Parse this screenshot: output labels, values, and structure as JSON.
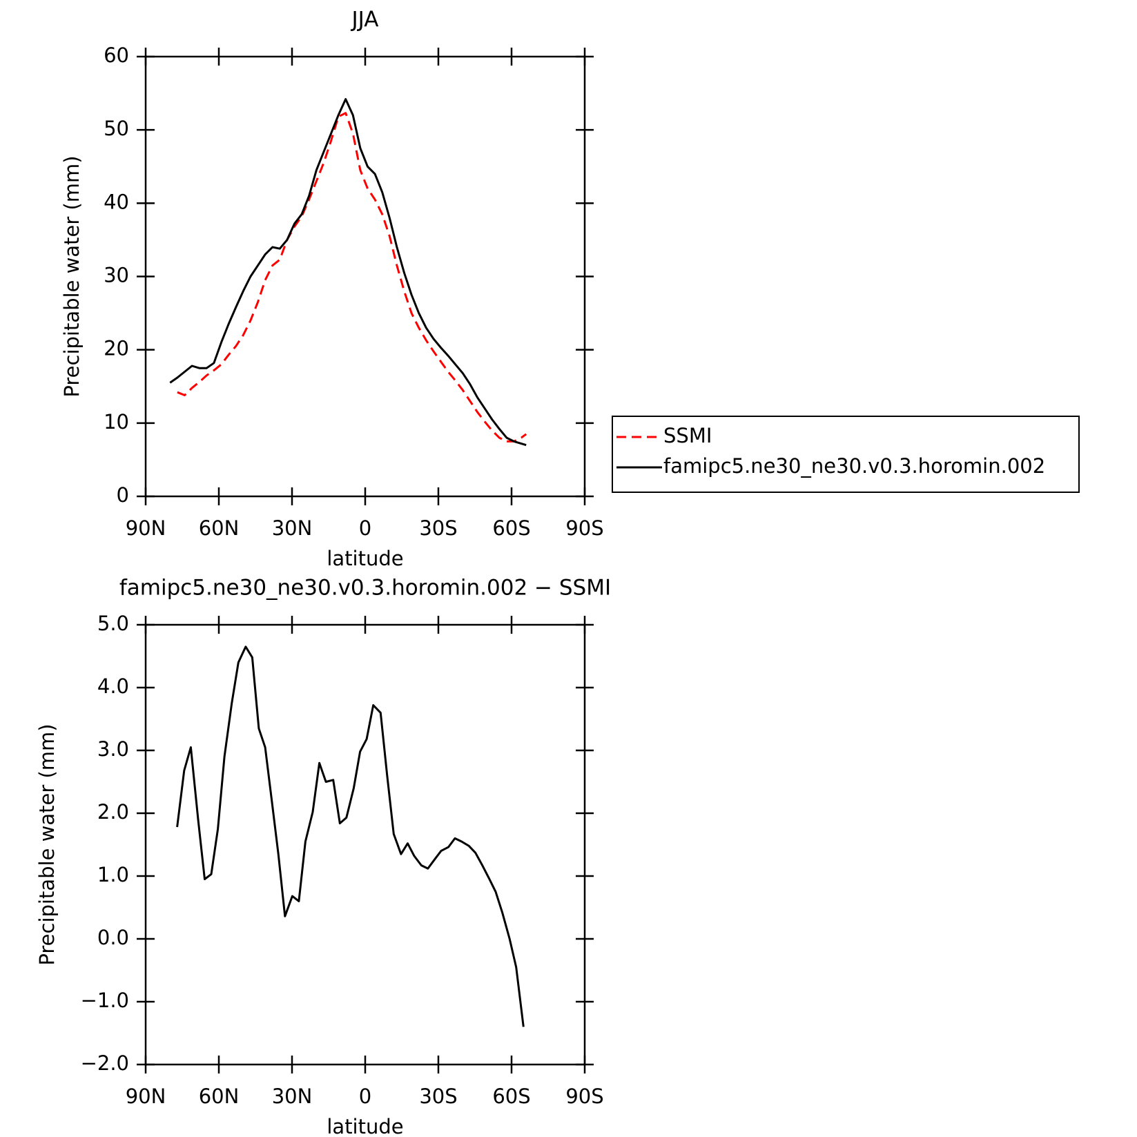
{
  "chart_data": [
    {
      "type": "line",
      "title": "JJA",
      "xlabel": "latitude",
      "ylabel": "Precipitable water (mm)",
      "x": [
        80,
        77,
        74,
        71,
        68,
        65,
        62,
        59,
        56,
        53,
        50,
        47,
        44,
        41,
        38,
        35,
        32,
        29,
        26,
        23,
        20,
        17,
        14,
        11,
        8,
        5,
        2,
        -1,
        -4,
        -7,
        -10,
        -13,
        -16,
        -19,
        -22,
        -25,
        -28,
        -31,
        -34,
        -37,
        -40,
        -43,
        -46,
        -49,
        -52,
        -55,
        -58,
        -61,
        -64,
        -66
      ],
      "series": [
        {
          "name": "SSMI",
          "color": "#ff0000",
          "dash": "dashed",
          "values": [
            null,
            14.2,
            13.8,
            14.8,
            15.6,
            16.5,
            17.2,
            18.0,
            19.3,
            20.5,
            22,
            24,
            26.5,
            29.5,
            31.5,
            32.3,
            35,
            36.8,
            38.2,
            40.5,
            43,
            45.5,
            48.5,
            51.8,
            52.3,
            49.5,
            44.5,
            42,
            40.5,
            38.5,
            35.5,
            31.5,
            28,
            25,
            23,
            21.3,
            19.8,
            18.4,
            17,
            15.8,
            14.5,
            13,
            11.5,
            10.2,
            9,
            8,
            7.5,
            7.5,
            8,
            8.5
          ]
        },
        {
          "name": "famipc5.ne30_ne30.v0.3.horomin.002",
          "color": "#000000",
          "dash": "solid",
          "values": [
            15.5,
            16.2,
            17.0,
            17.8,
            17.5,
            17.5,
            18.2,
            21,
            23.5,
            25.8,
            28,
            30,
            31.5,
            33,
            34,
            33.8,
            35,
            37.2,
            38.5,
            41,
            44.5,
            47,
            49.5,
            52,
            54.2,
            52.0,
            47.5,
            45,
            44,
            41.5,
            38,
            34,
            30.5,
            27.5,
            25,
            23,
            21.5,
            20.3,
            19.2,
            18,
            16.8,
            15.3,
            13.5,
            12,
            10.5,
            9.2,
            8,
            7.5,
            7.2,
            7.0
          ]
        }
      ],
      "xlim": [
        90,
        -90
      ],
      "xticks": [
        {
          "value": 90,
          "label": "90N"
        },
        {
          "value": 60,
          "label": "60N"
        },
        {
          "value": 30,
          "label": "30N"
        },
        0,
        {
          "value": -30,
          "label": "30S"
        },
        {
          "value": -60,
          "label": "60S"
        },
        {
          "value": -90,
          "label": "90S"
        }
      ],
      "ylim": [
        0,
        60
      ],
      "yticks": [
        0,
        10,
        20,
        30,
        40,
        50,
        60
      ],
      "legend": "outside-right"
    },
    {
      "type": "line",
      "title": "famipc5.ne30_ne30.v0.3.horomin.002 − SSMI",
      "xlabel": "latitude",
      "ylabel": "Precipitable water (mm)",
      "x": [
        77.1,
        74.2,
        71.5,
        68.5,
        65.8,
        63.1,
        60.4,
        57.7,
        54.7,
        52.0,
        49.0,
        46.3,
        43.6,
        41.0,
        38.3,
        35.6,
        32.9,
        29.9,
        27.2,
        24.5,
        21.5,
        18.8,
        16.1,
        13.1,
        10.4,
        7.7,
        4.7,
        2.1,
        -0.6,
        -3.3,
        -6.3,
        -9.0,
        -11.7,
        -14.7,
        -17.4,
        -20.1,
        -23.0,
        -25.7,
        -28.4,
        -31.1,
        -34.1,
        -36.8,
        -39.5,
        -42.5,
        -45.2,
        -47.9,
        -50.8,
        -53.5,
        -56.2,
        -59.2,
        -61.9,
        -64.9
      ],
      "values": [
        1.78,
        2.68,
        3.05,
        1.9,
        0.95,
        1.03,
        1.75,
        2.9,
        3.75,
        4.4,
        4.65,
        4.48,
        3.35,
        3.05,
        2.2,
        1.35,
        0.36,
        0.68,
        0.6,
        1.55,
        2.02,
        2.8,
        2.5,
        2.53,
        1.84,
        1.93,
        2.4,
        2.98,
        3.18,
        3.72,
        3.6,
        2.6,
        1.67,
        1.35,
        1.52,
        1.32,
        1.17,
        1.12,
        1.26,
        1.4,
        1.46,
        1.6,
        1.55,
        1.48,
        1.37,
        1.18,
        0.96,
        0.75,
        0.42,
        0.0,
        -0.45,
        -1.4
      ],
      "color": "#000000",
      "xlim": [
        90,
        -90
      ],
      "xticks": [
        {
          "value": 90,
          "label": "90N"
        },
        {
          "value": 60,
          "label": "60N"
        },
        {
          "value": 30,
          "label": "30N"
        },
        0,
        {
          "value": -30,
          "label": "30S"
        },
        {
          "value": -60,
          "label": "60S"
        },
        {
          "value": -90,
          "label": "90S"
        }
      ],
      "ylim": [
        -2,
        5
      ],
      "yticks": [
        {
          "value": -2,
          "label": "−2.0"
        },
        {
          "value": -1,
          "label": "−1.0"
        },
        {
          "value": 0,
          "label": "0.0"
        },
        {
          "value": 1,
          "label": "1.0"
        },
        {
          "value": 2,
          "label": "2.0"
        },
        {
          "value": 3,
          "label": "3.0"
        },
        {
          "value": 4,
          "label": "4.0"
        },
        {
          "value": 5,
          "label": "5.0"
        }
      ]
    }
  ]
}
